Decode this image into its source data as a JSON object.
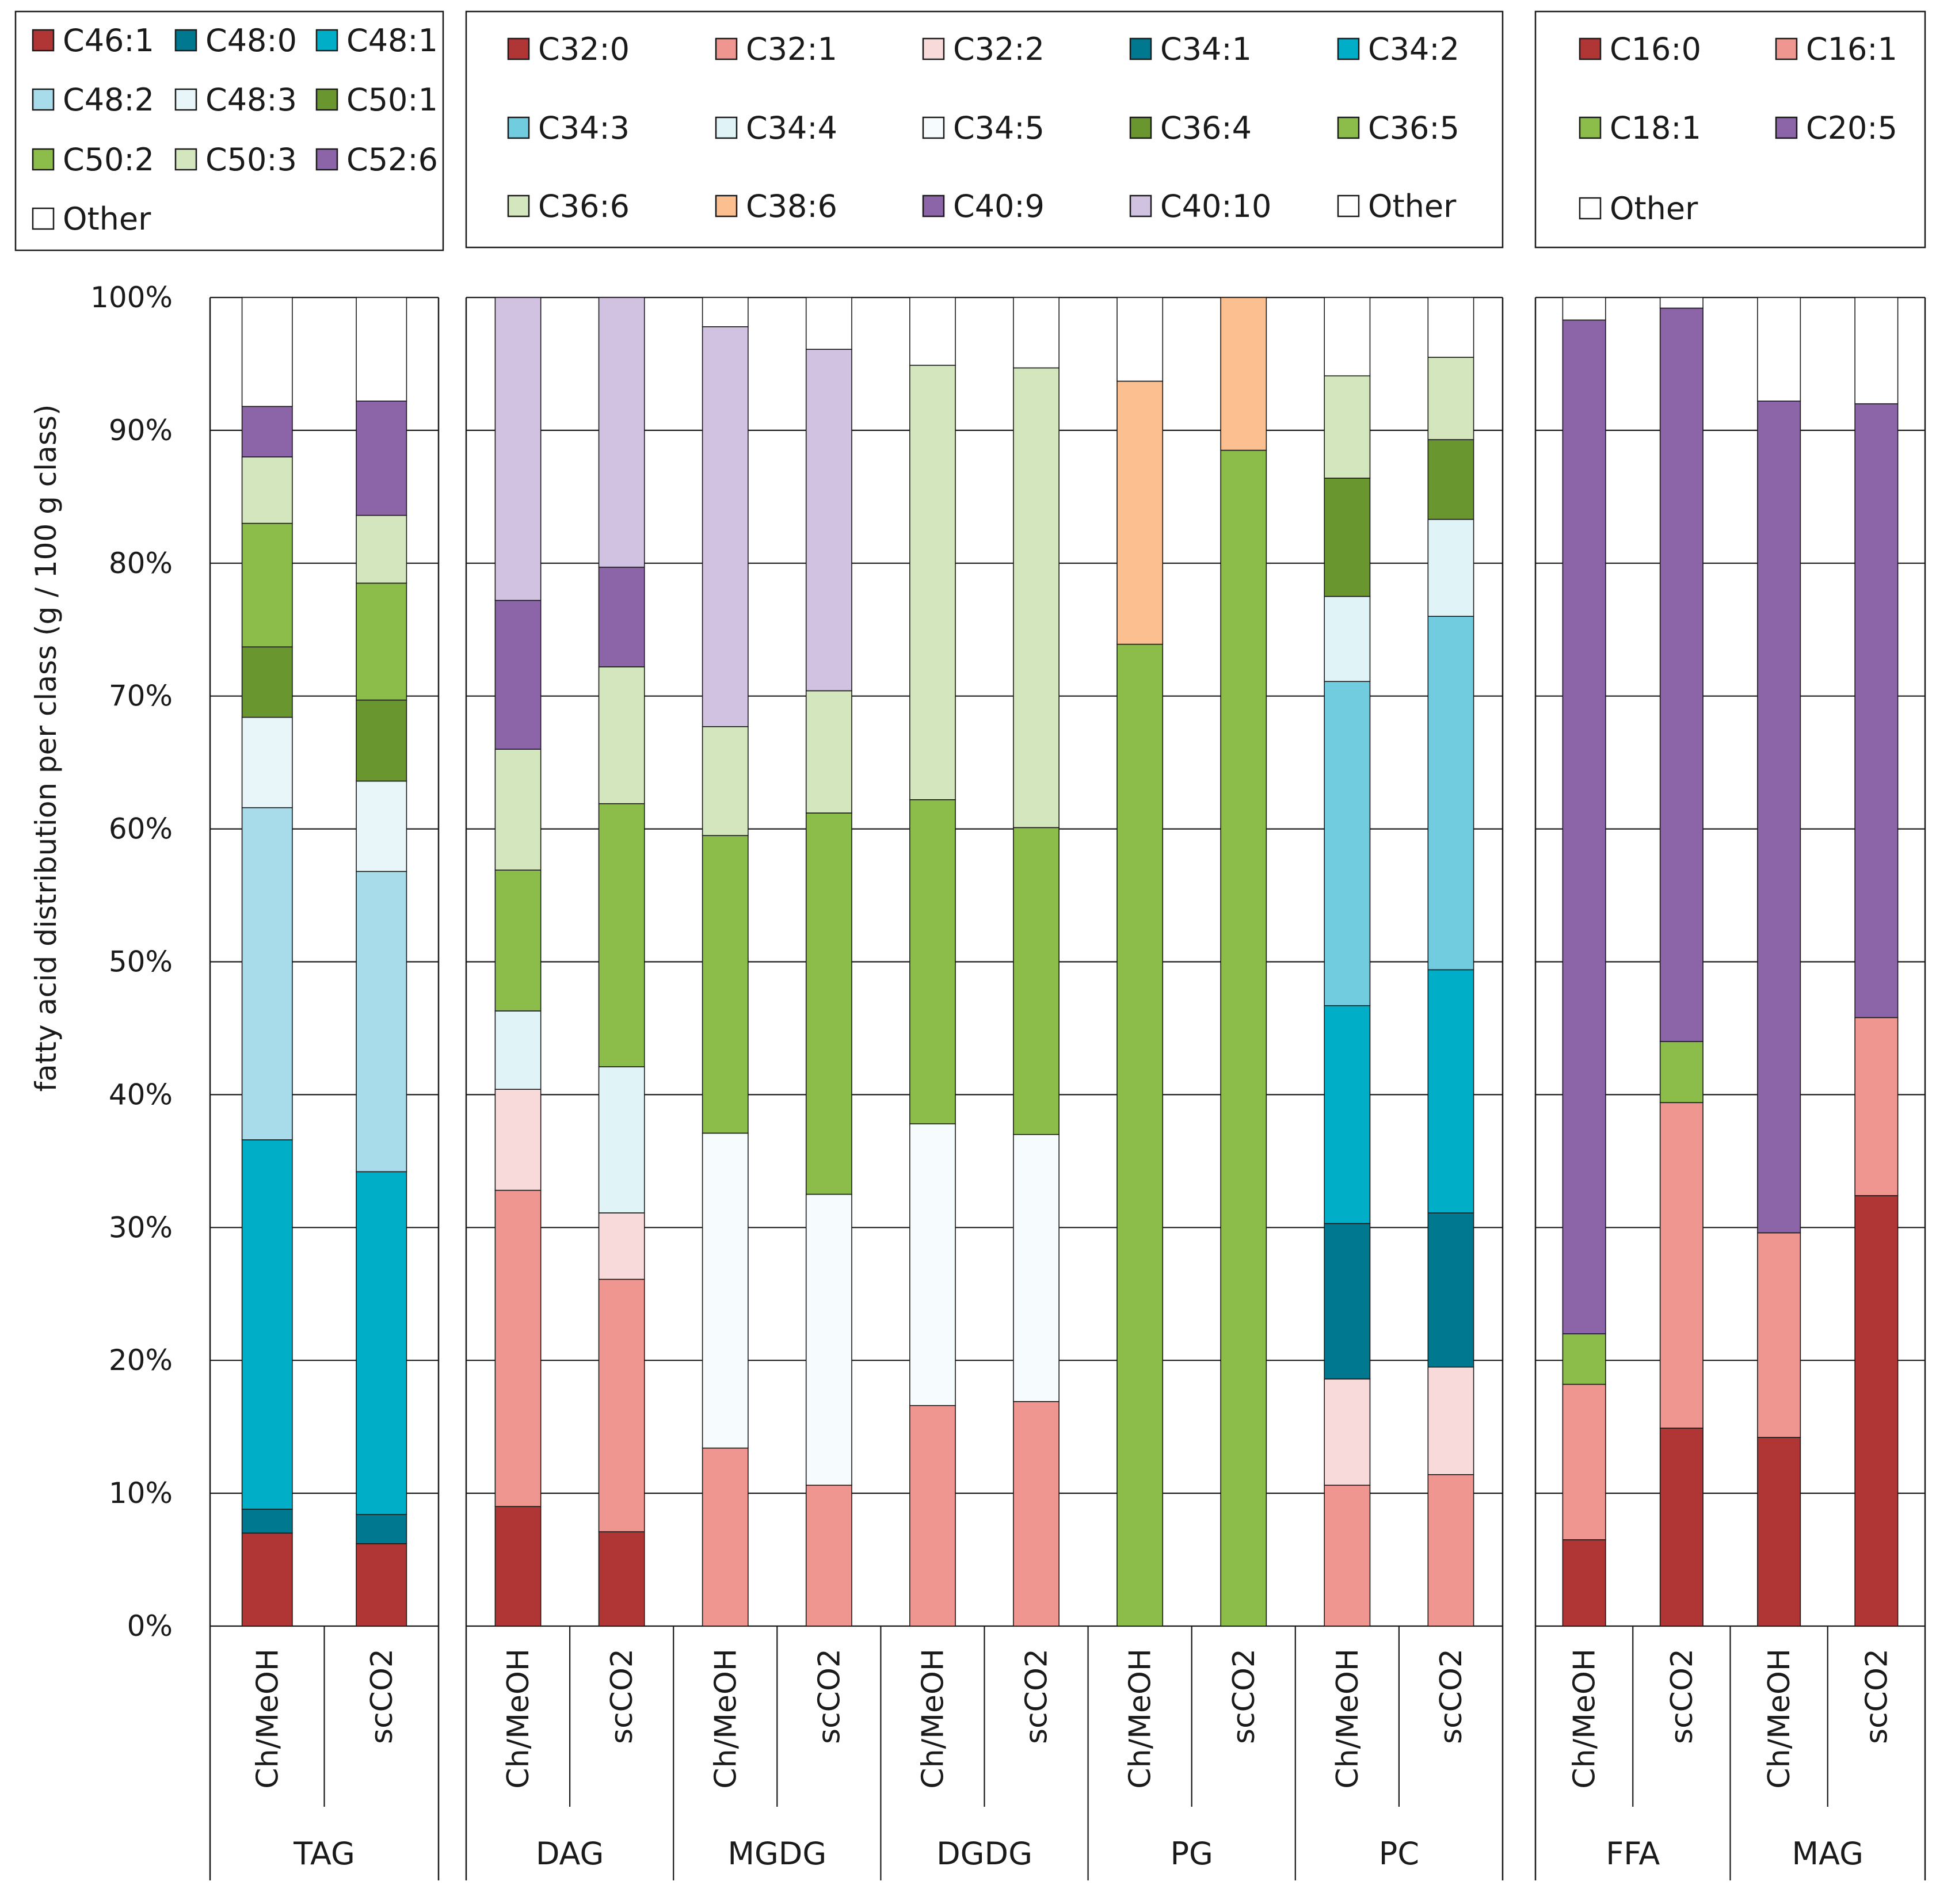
{
  "chart_data": {
    "type": "bar",
    "stacked": true,
    "ylabel": "fatty acid distribution per class (g / 100 g class)",
    "ylim": [
      0,
      100
    ],
    "yticks": [
      "0%",
      "10%",
      "20%",
      "30%",
      "40%",
      "50%",
      "60%",
      "70%",
      "80%",
      "90%",
      "100%"
    ],
    "grid": true,
    "panels": [
      {
        "name": "TAG-panel",
        "legend": {
          "columns": 3,
          "items": [
            {
              "label": "C46:1",
              "color": "#b03535"
            },
            {
              "label": "C48:0",
              "color": "#007890"
            },
            {
              "label": "C48:1",
              "color": "#00aec8"
            },
            {
              "label": "C48:2",
              "color": "#a8dcea"
            },
            {
              "label": "C48:3",
              "color": "#e8f6fa"
            },
            {
              "label": "C50:1",
              "color": "#6a9630"
            },
            {
              "label": "C50:2",
              "color": "#8cbc4a"
            },
            {
              "label": "C50:3",
              "color": "#d4e6bd"
            },
            {
              "label": "C52:6",
              "color": "#8c64a8"
            },
            {
              "label": "Other",
              "color": "#ffffff"
            }
          ]
        },
        "groups": [
          {
            "label": "TAG",
            "bars": [
              {
                "label": "Ch/MeOH",
                "values": [
                  7.0,
                  1.8,
                  27.8,
                  25.0,
                  6.8,
                  5.3,
                  9.3,
                  5.0,
                  3.8,
                  8.2
                ]
              },
              {
                "label": "scCO2",
                "values": [
                  6.2,
                  2.2,
                  25.8,
                  22.6,
                  6.8,
                  6.1,
                  8.8,
                  5.1,
                  8.6,
                  7.8
                ]
              }
            ]
          }
        ]
      },
      {
        "name": "polar-panel",
        "legend": {
          "columns": 5,
          "items": [
            {
              "label": "C32:0",
              "color": "#b03535"
            },
            {
              "label": "C32:1",
              "color": "#f09690"
            },
            {
              "label": "C32:2",
              "color": "#f8dada"
            },
            {
              "label": "C34:1",
              "color": "#007890"
            },
            {
              "label": "C34:2",
              "color": "#00aec8"
            },
            {
              "label": "C34:3",
              "color": "#72cce0"
            },
            {
              "label": "C34:4",
              "color": "#e0f4f8"
            },
            {
              "label": "C34:5",
              "color": "#f6fcfd"
            },
            {
              "label": "C36:4",
              "color": "#6a9630"
            },
            {
              "label": "C36:5",
              "color": "#8cbc4a"
            },
            {
              "label": "C36:6",
              "color": "#d4e6bd"
            },
            {
              "label": "C38:6",
              "color": "#fcc090"
            },
            {
              "label": "C40:9",
              "color": "#8c64a8"
            },
            {
              "label": "C40:10",
              "color": "#d0c2e0"
            },
            {
              "label": "Other",
              "color": "#ffffff"
            }
          ]
        },
        "groups": [
          {
            "label": "DAG",
            "bars": [
              {
                "label": "Ch/MeOH",
                "values": [
                  9.0,
                  23.8,
                  7.6,
                  0,
                  0,
                  0,
                  5.9,
                  0,
                  0,
                  10.6,
                  9.1,
                  0,
                  11.2,
                  22.8,
                  0
                ]
              },
              {
                "label": "scCO2",
                "values": [
                  7.1,
                  19.0,
                  5.0,
                  0,
                  0,
                  0,
                  11.0,
                  0,
                  0,
                  19.8,
                  10.3,
                  0,
                  7.5,
                  20.3,
                  0
                ]
              }
            ]
          },
          {
            "label": "MGDG",
            "bars": [
              {
                "label": "Ch/MeOH",
                "values": [
                  0,
                  13.4,
                  0,
                  0,
                  0,
                  0,
                  0,
                  23.7,
                  0,
                  22.4,
                  8.2,
                  0,
                  0,
                  30.1,
                  2.2
                ]
              },
              {
                "label": "scCO2",
                "values": [
                  0,
                  10.6,
                  0,
                  0,
                  0,
                  0,
                  0,
                  21.9,
                  0,
                  28.7,
                  9.2,
                  0,
                  0,
                  25.7,
                  3.9
                ]
              }
            ]
          },
          {
            "label": "DGDG",
            "bars": [
              {
                "label": "Ch/MeOH",
                "values": [
                  0,
                  16.6,
                  0,
                  0,
                  0,
                  0,
                  0,
                  21.2,
                  0,
                  24.4,
                  32.7,
                  0,
                  0,
                  0,
                  5.1
                ]
              },
              {
                "label": "scCO2",
                "values": [
                  0,
                  16.9,
                  0,
                  0,
                  0,
                  0,
                  0,
                  20.1,
                  0,
                  23.1,
                  34.6,
                  0,
                  0,
                  0,
                  5.3
                ]
              }
            ]
          },
          {
            "label": "PG",
            "bars": [
              {
                "label": "Ch/MeOH",
                "values": [
                  0,
                  0,
                  0,
                  0,
                  0,
                  0,
                  0,
                  0,
                  0,
                  73.9,
                  0,
                  19.8,
                  0,
                  0,
                  6.3
                ]
              },
              {
                "label": "scCO2",
                "values": [
                  0,
                  0,
                  0,
                  0,
                  0,
                  0,
                  0,
                  0,
                  0,
                  88.5,
                  0,
                  11.5,
                  0,
                  0,
                  0
                ]
              }
            ]
          },
          {
            "label": "PC",
            "bars": [
              {
                "label": "Ch/MeOH",
                "values": [
                  0,
                  10.6,
                  8.0,
                  11.7,
                  16.4,
                  24.4,
                  6.4,
                  0,
                  8.9,
                  0,
                  7.7,
                  0,
                  0,
                  0,
                  5.9
                ]
              },
              {
                "label": "scCO2",
                "values": [
                  0,
                  11.4,
                  8.1,
                  11.6,
                  18.3,
                  26.6,
                  7.3,
                  0,
                  6.0,
                  0,
                  6.2,
                  0,
                  0,
                  0,
                  4.5
                ]
              }
            ]
          }
        ]
      },
      {
        "name": "FFA-MAG-panel",
        "legend": {
          "columns": 2,
          "items": [
            {
              "label": "C16:0",
              "color": "#b03535"
            },
            {
              "label": "C16:1",
              "color": "#f09690"
            },
            {
              "label": "C18:1",
              "color": "#8cbc4a"
            },
            {
              "label": "C20:5",
              "color": "#8c64a8"
            },
            {
              "label": "Other",
              "color": "#ffffff"
            }
          ]
        },
        "groups": [
          {
            "label": "FFA",
            "bars": [
              {
                "label": "Ch/MeOH",
                "values": [
                  6.5,
                  11.7,
                  3.8,
                  76.3,
                  1.7
                ]
              },
              {
                "label": "scCO2",
                "values": [
                  14.9,
                  24.5,
                  4.6,
                  55.2,
                  0.8
                ]
              }
            ]
          },
          {
            "label": "MAG",
            "bars": [
              {
                "label": "Ch/MeOH",
                "values": [
                  14.2,
                  15.4,
                  0,
                  62.6,
                  7.8
                ]
              },
              {
                "label": "scCO2",
                "values": [
                  32.4,
                  13.4,
                  0,
                  46.2,
                  8.0
                ]
              }
            ]
          }
        ]
      }
    ]
  }
}
